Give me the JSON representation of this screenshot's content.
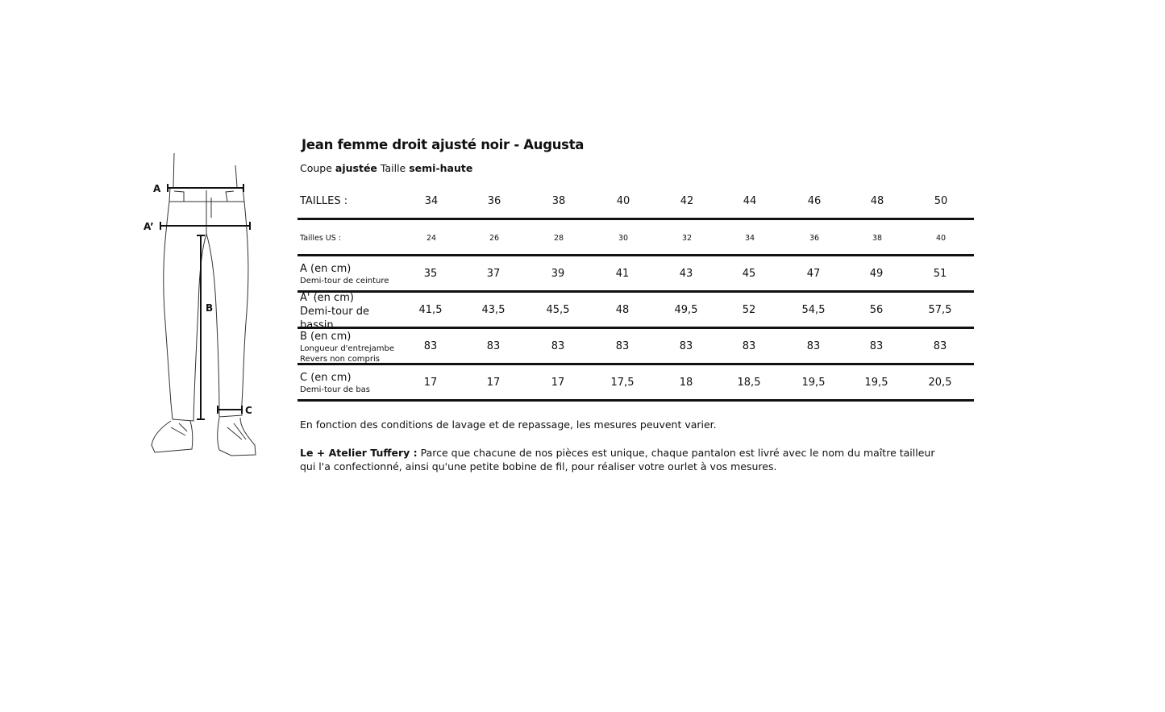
{
  "title": "Jean femme droit ajusté noir - Augusta",
  "subtitle": {
    "coupe_label": "Coupe",
    "coupe_value": "ajustée",
    "taille_label": "Taille",
    "taille_value": "semi-haute"
  },
  "diagram": {
    "labels": {
      "a": "A",
      "a_prime": "A’",
      "b": "B",
      "c": "C"
    }
  },
  "table": {
    "header": {
      "label": "TAILLES :",
      "values": [
        "34",
        "36",
        "38",
        "40",
        "42",
        "44",
        "46",
        "48",
        "50"
      ]
    },
    "us": {
      "label": "Tailles US :",
      "values": [
        "24",
        "26",
        "28",
        "30",
        "32",
        "34",
        "36",
        "38",
        "40"
      ]
    },
    "rows": [
      {
        "label": "A (en cm)",
        "sub": [
          "Demi-tour de ceinture"
        ],
        "values": [
          "35",
          "37",
          "39",
          "41",
          "43",
          "45",
          "47",
          "49",
          "51"
        ]
      },
      {
        "label": "A' (en cm)",
        "sub_large": [
          "Demi-tour de",
          "bassin"
        ],
        "values": [
          "41,5",
          "43,5",
          "45,5",
          "48",
          "49,5",
          "52",
          "54,5",
          "56",
          "57,5"
        ]
      },
      {
        "label": "B (en cm)",
        "sub": [
          "Longueur d'entrejambe",
          "Revers non compris"
        ],
        "values": [
          "83",
          "83",
          "83",
          "83",
          "83",
          "83",
          "83",
          "83",
          "83"
        ]
      },
      {
        "label": "C (en cm)",
        "sub": [
          "Demi-tour de bas"
        ],
        "values": [
          "17",
          "17",
          "17",
          "17,5",
          "18",
          "18,5",
          "19,5",
          "19,5",
          "20,5"
        ]
      }
    ]
  },
  "notes": {
    "washing": "En fonction des conditions de lavage et de repassage, les mesures peuvent varier.",
    "atelier_label": "Le + Atelier Tuffery :",
    "atelier_text": " Parce que chacune de nos pièces est unique, chaque pantalon est livré avec le nom du maître tailleur qui l'a confectionné, ainsi qu'une petite bobine de fil, pour réaliser votre ourlet à vos mesures."
  }
}
